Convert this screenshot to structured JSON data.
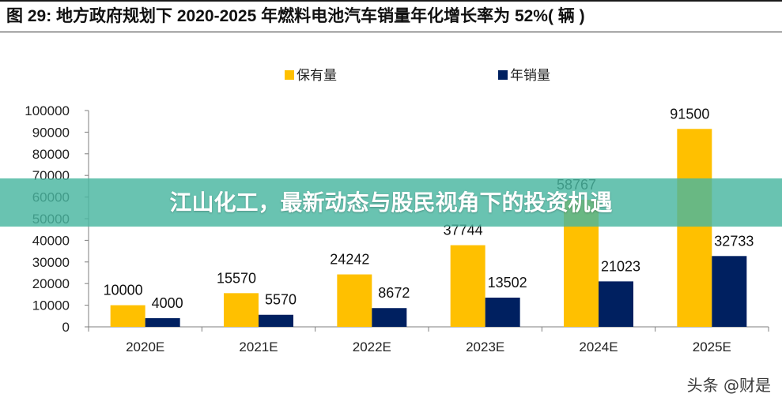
{
  "header": {
    "title": "图 29: 地方政府规划下 2020-2025 年燃料电池汽车销量年化增长率为 52%( 辆 )"
  },
  "banner": {
    "text": "江山化工，最新动态与股民视角下的投资机遇"
  },
  "watermark": {
    "text": "头条 @财是"
  },
  "colors": {
    "holding": "#FFC000",
    "sales": "#002060",
    "banner": "#48B6A0"
  },
  "chart_data": {
    "type": "bar",
    "title": "",
    "xlabel": "",
    "ylabel": "",
    "categories": [
      "2020E",
      "2021E",
      "2022E",
      "2023E",
      "2024E",
      "2025E"
    ],
    "series": [
      {
        "name": "保有量",
        "values": [
          10000,
          15570,
          24242,
          37744,
          58767,
          91500
        ],
        "labels": [
          "10000",
          "15570",
          "24242",
          "37744",
          "58767",
          "91500"
        ]
      },
      {
        "name": "年销量",
        "values": [
          4000,
          5570,
          8672,
          13502,
          21023,
          32733
        ],
        "labels": [
          "4000",
          "5570",
          "8672",
          "13502",
          "21023",
          "32733"
        ]
      }
    ],
    "ylim": [
      0,
      100000
    ],
    "yticks": [
      "0",
      "10000",
      "20000",
      "30000",
      "40000",
      "50000",
      "60000",
      "70000",
      "80000",
      "90000",
      "100000"
    ],
    "legend": "top-center",
    "grid": false
  }
}
